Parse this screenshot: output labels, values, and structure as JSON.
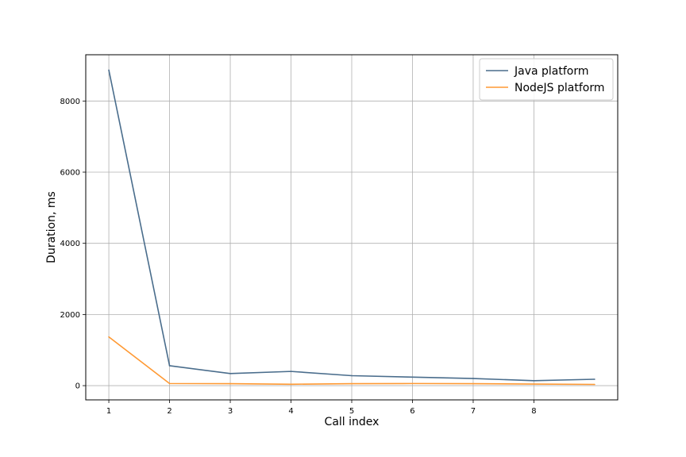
{
  "chart_data": {
    "type": "line",
    "xlabel": "Call index",
    "ylabel": "Duration, ms",
    "x": [
      1,
      2,
      3,
      4,
      5,
      6,
      7,
      8,
      9
    ],
    "xlim": [
      0.62,
      9.38
    ],
    "ylim": [
      -400,
      9300
    ],
    "xticks": [
      1,
      2,
      3,
      4,
      5,
      6,
      7,
      8
    ],
    "yticks": [
      0,
      2000,
      4000,
      6000,
      8000
    ],
    "grid": true,
    "legend_position": "top-right",
    "series": [
      {
        "name": "Java platform",
        "color": "#4a6d8c",
        "values": [
          8870,
          560,
          340,
          400,
          280,
          240,
          200,
          140,
          180
        ]
      },
      {
        "name": "NodeJS platform",
        "color": "#ff9933",
        "values": [
          1370,
          60,
          55,
          40,
          55,
          60,
          55,
          45,
          35
        ]
      }
    ]
  }
}
